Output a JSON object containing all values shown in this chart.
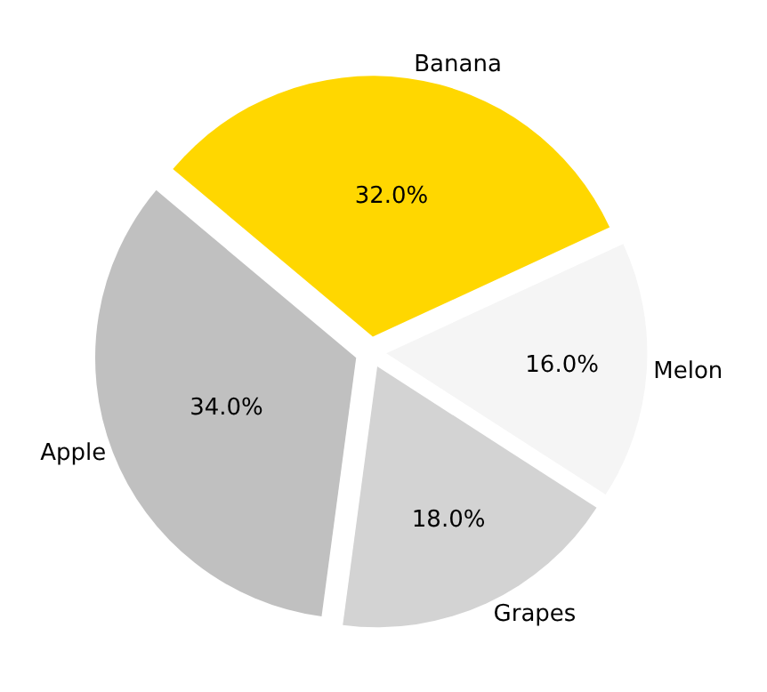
{
  "chart_data": {
    "type": "pie",
    "categories": [
      "Banana",
      "Melon",
      "Grapes",
      "Apple"
    ],
    "values": [
      32,
      16,
      18,
      34
    ],
    "value_labels": [
      "32.0%",
      "16.0%",
      "18.0%",
      "34.0%"
    ],
    "colors": [
      "#ffd700",
      "#f5f5f5",
      "#d3d3d3",
      "#c0c0c0"
    ],
    "legend": false
  }
}
